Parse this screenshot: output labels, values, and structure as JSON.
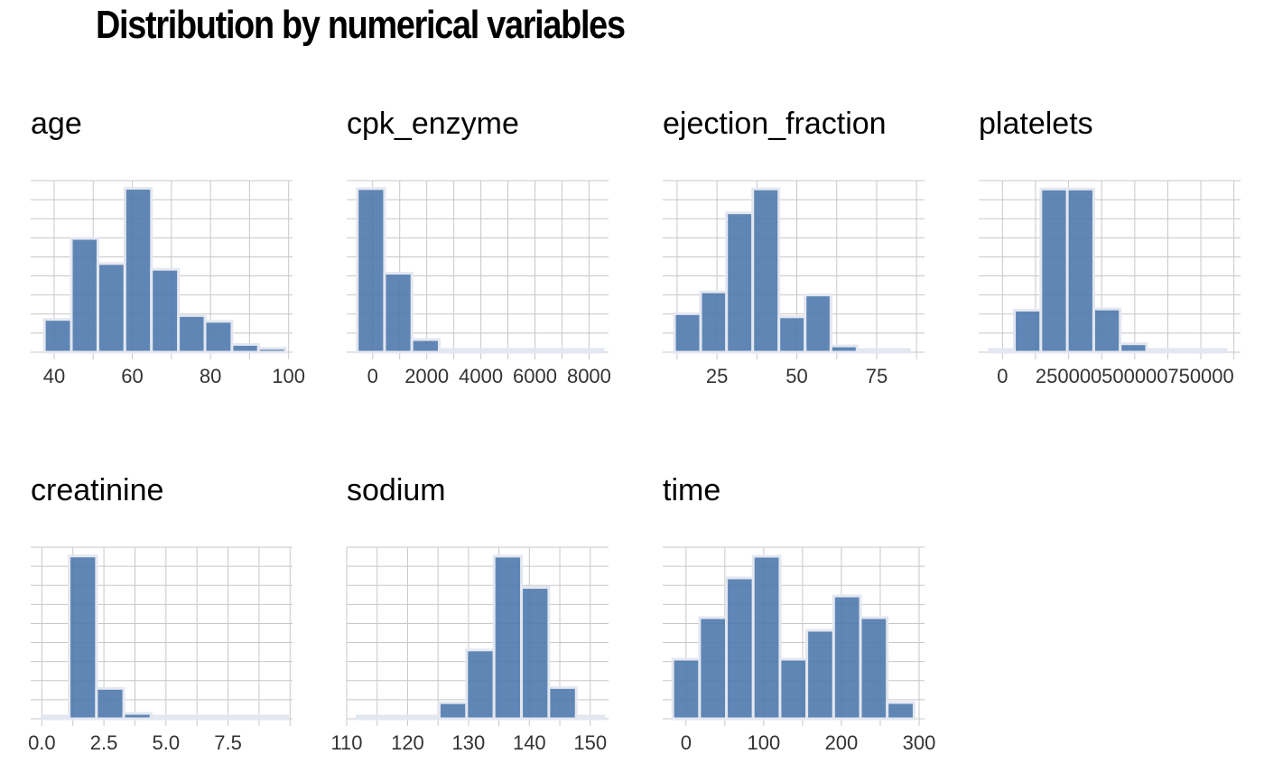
{
  "title": "Distribution by numerical variables",
  "colors": {
    "bar_fill": "#4e79ad",
    "bar_stroke": "#e3e7f0",
    "grid": "#c8c8c8"
  },
  "chart_data": [
    {
      "type": "bar",
      "name": "age",
      "title": "age",
      "bin_edges": [
        37.5,
        44.4,
        51.2,
        58.1,
        64.9,
        71.8,
        78.6,
        85.5,
        92.3,
        99.2
      ],
      "counts": [
        17,
        59,
        46,
        85,
        43,
        19,
        16,
        4,
        2
      ],
      "xlim": [
        34,
        101
      ],
      "ylim": [
        0,
        89
      ],
      "xticks": [
        40,
        60,
        80,
        100
      ],
      "xtick_labels": [
        "40",
        "60",
        "80",
        "100"
      ]
    },
    {
      "type": "bar",
      "name": "cpk_enzyme",
      "title": "cpk_enzyme",
      "bin_edges": [
        -570,
        440,
        1450,
        2460,
        3470,
        4480,
        5490,
        6500,
        7510,
        8520
      ],
      "counts": [
        143,
        69,
        11,
        2,
        1,
        1,
        1,
        0,
        1
      ],
      "xlim": [
        -960,
        8720
      ],
      "ylim": [
        0,
        150
      ],
      "xticks": [
        0,
        2000,
        4000,
        6000,
        8000
      ],
      "xtick_labels": [
        "0",
        "2000",
        "4000",
        "6000",
        "8000"
      ]
    },
    {
      "type": "bar",
      "name": "ejection_fraction",
      "title": "ejection_fraction",
      "bin_edges": [
        11.7,
        19.9,
        28.0,
        36.2,
        44.4,
        52.6,
        60.7,
        68.9,
        77.1,
        85.3
      ],
      "counts": [
        37,
        58,
        134,
        157,
        34,
        55,
        6,
        0,
        2
      ],
      "xlim": [
        8,
        90
      ],
      "ylim": [
        0,
        165
      ],
      "xticks": [
        25,
        50,
        75
      ],
      "xtick_labels": [
        "25",
        "50",
        "75"
      ]
    },
    {
      "type": "bar",
      "name": "platelets",
      "title": "platelets",
      "bin_edges": [
        -50000,
        45000,
        145000,
        245000,
        345000,
        445000,
        545000,
        645000,
        745000,
        845000
      ],
      "counts": [
        2,
        35,
        136,
        136,
        36,
        7,
        1,
        1,
        1
      ],
      "xlim": [
        -90000,
        900000
      ],
      "ylim": [
        0,
        143
      ],
      "xticks": [
        0,
        250000,
        500000,
        750000
      ],
      "xtick_labels": [
        "0",
        "250000",
        "500000",
        "750000"
      ]
    },
    {
      "type": "bar",
      "name": "creatinine",
      "title": "creatinine",
      "bin_edges": [
        0.02,
        1.1,
        2.2,
        3.3,
        4.4,
        5.5,
        6.6,
        7.7,
        8.8,
        9.9
      ],
      "counts": [
        2,
        241,
        45,
        8,
        2,
        2,
        1,
        0,
        2
      ],
      "xlim": [
        -0.45,
        10.1
      ],
      "ylim": [
        0,
        254
      ],
      "xticks": [
        0,
        2.5,
        5,
        7.5
      ],
      "xtick_labels": [
        "0.0",
        "2.5",
        "5.0",
        "7.5"
      ]
    },
    {
      "type": "bar",
      "name": "sodium",
      "title": "sodium",
      "bin_edges": [
        111.7,
        116.2,
        120.7,
        125.2,
        129.7,
        134.2,
        138.7,
        143.2,
        147.7,
        152.2
      ],
      "counts": [
        1,
        1,
        2,
        18,
        77,
        182,
        147,
        35,
        1
      ],
      "xlim": [
        110,
        153
      ],
      "ylim": [
        0,
        192
      ],
      "xticks": [
        110,
        120,
        130,
        140,
        150
      ],
      "xtick_labels": [
        "110",
        "120",
        "130",
        "140",
        "150"
      ]
    },
    {
      "type": "bar",
      "name": "time",
      "title": "time",
      "bin_edges": [
        -17,
        17.5,
        52,
        86.5,
        121,
        155.5,
        190,
        224.5,
        259,
        293.5
      ],
      "counts": [
        33,
        56,
        78,
        90,
        33,
        49,
        68,
        56,
        9
      ],
      "xlim": [
        -30,
        307
      ],
      "ylim": [
        0,
        95
      ],
      "xticks": [
        0,
        100,
        200,
        300
      ],
      "xtick_labels": [
        "0",
        "100",
        "200",
        "300"
      ]
    }
  ]
}
